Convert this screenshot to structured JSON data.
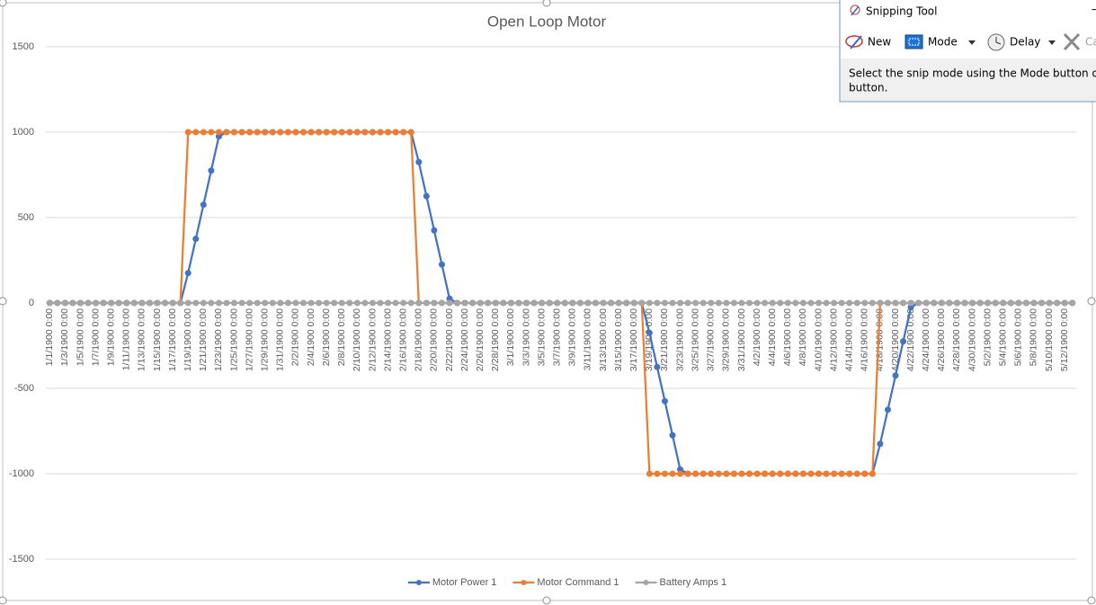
{
  "chart_data": {
    "type": "line",
    "title": "Open Loop Motor",
    "categories": [
      "1/1/1900 0:00",
      null,
      "1/3/1900 0:00",
      null,
      "1/5/1900 0:00",
      null,
      "1/7/1900 0:00",
      null,
      "1/9/1900 0:00",
      null,
      "1/11/1900 0:00",
      null,
      "1/13/1900 0:00",
      null,
      "1/15/1900 0:00",
      null,
      "1/17/1900 0:00",
      null,
      "1/19/1900 0:00",
      null,
      "1/21/1900 0:00",
      null,
      "1/23/1900 0:00",
      null,
      "1/25/1900 0:00",
      null,
      "1/27/1900 0:00",
      null,
      "1/29/1900 0:00",
      null,
      "1/31/1900 0:00",
      null,
      "2/2/1900 0:00",
      null,
      "2/4/1900 0:00",
      null,
      "2/6/1900 0:00",
      null,
      "2/8/1900 0:00",
      null,
      "2/10/1900 0:00",
      null,
      "2/12/1900 0:00",
      null,
      "2/14/1900 0:00",
      null,
      "2/16/1900 0:00",
      null,
      "2/18/1900 0:00",
      null,
      "2/20/1900 0:00",
      null,
      "2/22/1900 0:00",
      null,
      "2/24/1900 0:00",
      null,
      "2/26/1900 0:00",
      null,
      "2/28/1900 0:00",
      null,
      "3/1/1900 0:00",
      null,
      "3/3/1900 0:00",
      null,
      "3/5/1900 0:00",
      null,
      "3/7/1900 0:00",
      null,
      "3/9/1900 0:00",
      null,
      "3/11/1900 0:00",
      null,
      "3/13/1900 0:00",
      null,
      "3/15/1900 0:00",
      null,
      "3/17/1900 0:00",
      null,
      "3/19/1900 0:00",
      null,
      "3/21/1900 0:00",
      null,
      "3/23/1900 0:00",
      null,
      "3/25/1900 0:00",
      null,
      "3/27/1900 0:00",
      null,
      "3/29/1900 0:00",
      null,
      "3/31/1900 0:00",
      null,
      "4/2/1900 0:00",
      null,
      "4/4/1900 0:00",
      null,
      "4/6/1900 0:00",
      null,
      "4/8/1900 0:00",
      null,
      "4/10/1900 0:00",
      null,
      "4/12/1900 0:00",
      null,
      "4/14/1900 0:00",
      null,
      "4/16/1900 0:00",
      null,
      "4/18/1900 0:00",
      null,
      "4/20/1900 0:00",
      null,
      "4/22/1900 0:00",
      null,
      "4/24/1900 0:00",
      null,
      "4/26/1900 0:00",
      null,
      "4/28/1900 0:00",
      null,
      "4/30/1900 0:00",
      null,
      "5/2/1900 0:00",
      null,
      "5/4/1900 0:00",
      null,
      "5/6/1900 0:00",
      null,
      "5/8/1900 0:00",
      null,
      "5/10/1900 0:00",
      null,
      "5/12/1900 0:00",
      null
    ],
    "series": [
      {
        "name": "Motor Power 1",
        "color": "#4472c4",
        "values": [
          0,
          0,
          0,
          0,
          0,
          0,
          0,
          0,
          0,
          0,
          0,
          0,
          0,
          0,
          0,
          0,
          0,
          0,
          175,
          375,
          575,
          775,
          975,
          1000,
          1000,
          1000,
          1000,
          1000,
          1000,
          1000,
          1000,
          1000,
          1000,
          1000,
          1000,
          1000,
          1000,
          1000,
          1000,
          1000,
          1000,
          1000,
          1000,
          1000,
          1000,
          1000,
          1000,
          1000,
          825,
          625,
          425,
          225,
          25,
          0,
          0,
          0,
          0,
          0,
          0,
          0,
          0,
          0,
          0,
          0,
          0,
          0,
          0,
          0,
          0,
          0,
          0,
          0,
          0,
          0,
          0,
          0,
          0,
          0,
          -175,
          -375,
          -575,
          -775,
          -975,
          -1000,
          -1000,
          -1000,
          -1000,
          -1000,
          -1000,
          -1000,
          -1000,
          -1000,
          -1000,
          -1000,
          -1000,
          -1000,
          -1000,
          -1000,
          -1000,
          -1000,
          -1000,
          -1000,
          -1000,
          -1000,
          -1000,
          -1000,
          -1000,
          -1000,
          -825,
          -625,
          -425,
          -225,
          -25,
          0,
          0,
          0,
          0,
          0,
          0,
          0,
          0,
          0,
          0,
          0,
          0,
          0,
          0,
          0,
          0,
          0,
          0,
          0,
          0,
          0
        ]
      },
      {
        "name": "Motor Command 1",
        "color": "#ed7d31",
        "values": [
          0,
          0,
          0,
          0,
          0,
          0,
          0,
          0,
          0,
          0,
          0,
          0,
          0,
          0,
          0,
          0,
          0,
          0,
          1000,
          1000,
          1000,
          1000,
          1000,
          1000,
          1000,
          1000,
          1000,
          1000,
          1000,
          1000,
          1000,
          1000,
          1000,
          1000,
          1000,
          1000,
          1000,
          1000,
          1000,
          1000,
          1000,
          1000,
          1000,
          1000,
          1000,
          1000,
          1000,
          1000,
          0,
          0,
          0,
          0,
          0,
          0,
          0,
          0,
          0,
          0,
          0,
          0,
          0,
          0,
          0,
          0,
          0,
          0,
          0,
          0,
          0,
          0,
          0,
          0,
          0,
          0,
          0,
          0,
          0,
          0,
          -1000,
          -1000,
          -1000,
          -1000,
          -1000,
          -1000,
          -1000,
          -1000,
          -1000,
          -1000,
          -1000,
          -1000,
          -1000,
          -1000,
          -1000,
          -1000,
          -1000,
          -1000,
          -1000,
          -1000,
          -1000,
          -1000,
          -1000,
          -1000,
          -1000,
          -1000,
          -1000,
          -1000,
          -1000,
          -1000,
          0,
          0,
          0,
          0,
          0,
          0,
          0,
          0,
          0,
          0,
          0,
          0,
          0,
          0,
          0,
          0,
          0,
          0,
          0,
          0,
          0,
          0,
          0,
          0,
          0,
          0
        ]
      },
      {
        "name": "Battery Amps 1",
        "color": "#a5a5a5",
        "values": [
          0,
          0,
          0,
          0,
          0,
          0,
          0,
          0,
          0,
          0,
          0,
          0,
          0,
          0,
          0,
          0,
          0,
          0,
          0,
          0,
          0,
          0,
          0,
          0,
          0,
          0,
          0,
          0,
          0,
          0,
          0,
          0,
          0,
          0,
          0,
          0,
          0,
          0,
          0,
          0,
          0,
          0,
          0,
          0,
          0,
          0,
          0,
          0,
          0,
          0,
          0,
          0,
          0,
          0,
          0,
          0,
          0,
          0,
          0,
          0,
          0,
          0,
          0,
          0,
          0,
          0,
          0,
          0,
          0,
          0,
          0,
          0,
          0,
          0,
          0,
          0,
          0,
          0,
          0,
          0,
          0,
          0,
          0,
          0,
          0,
          0,
          0,
          0,
          0,
          0,
          0,
          0,
          0,
          0,
          0,
          0,
          0,
          0,
          0,
          0,
          0,
          0,
          0,
          0,
          0,
          0,
          0,
          0,
          0,
          0,
          0,
          0,
          0,
          0,
          0,
          0,
          0,
          0,
          0,
          0,
          0,
          0,
          0,
          0,
          0,
          0,
          0,
          0,
          0,
          0,
          0,
          0,
          0,
          0
        ]
      }
    ],
    "ylim": [
      -1500,
      1500
    ],
    "yticks": [
      -1500,
      -1000,
      -500,
      0,
      500,
      1000,
      1500
    ],
    "grid": true,
    "legend": "bottom"
  },
  "snipping_tool": {
    "title": "Snipping Tool",
    "buttons": [
      "New",
      "Mode",
      "Delay",
      "Ca"
    ],
    "message": [
      "Select the snip mode using the Mode button or click",
      "button."
    ]
  }
}
